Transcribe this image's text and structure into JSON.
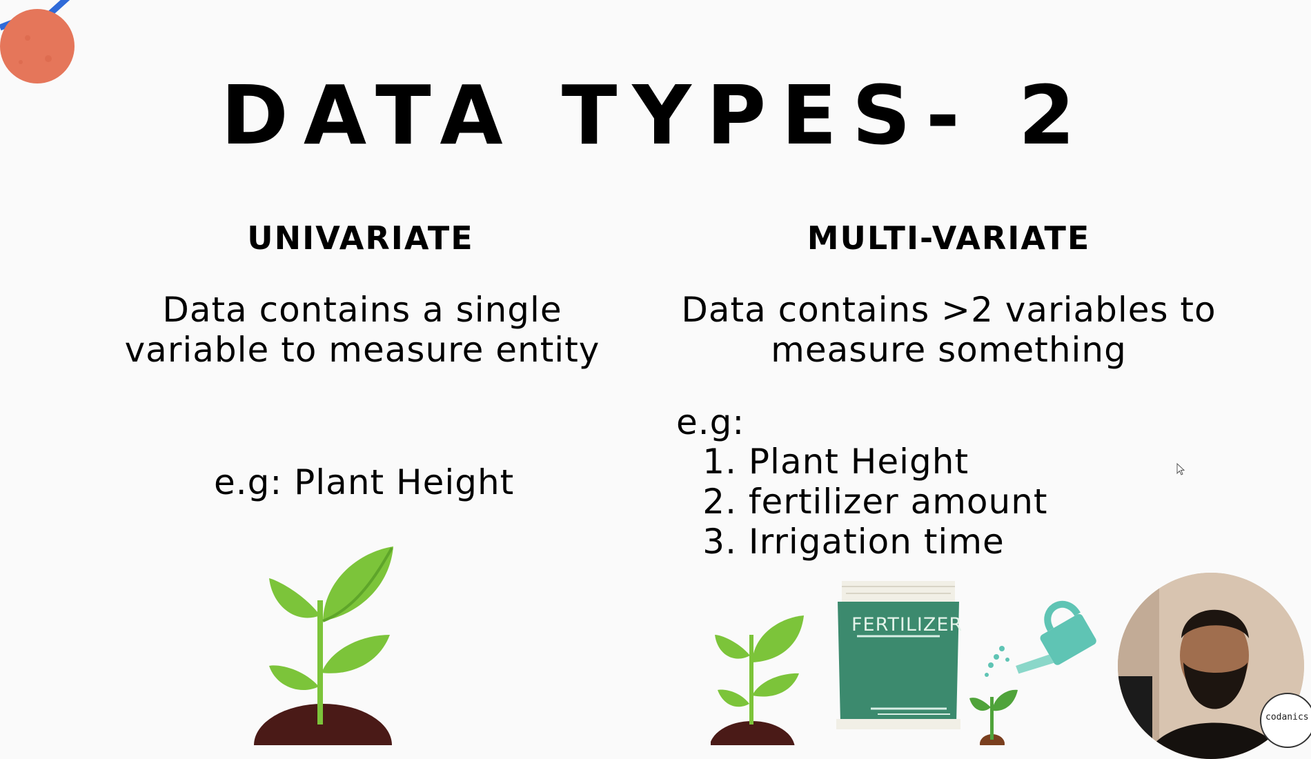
{
  "slide": {
    "title": "DATA TYPES- 2",
    "left": {
      "heading": "UNIVARIATE",
      "desc_line1": "Data contains a single",
      "desc_line2": "variable to measure entity",
      "example": "e.g: Plant Height"
    },
    "right": {
      "heading": "MULTI-VARIATE",
      "desc_line1": "Data contains >2 variables to",
      "desc_line2": "measure something",
      "example_label": "e.g:",
      "examples": [
        {
          "num": "1.",
          "text": "Plant Height"
        },
        {
          "num": "2.",
          "text": "fertilizer amount"
        },
        {
          "num": "3.",
          "text": "Irrigation time"
        }
      ]
    },
    "bag_label": "FERTILIZER",
    "brand": "codanics"
  },
  "colors": {
    "background": "#fafafa",
    "leaf": "#7cc43a",
    "soil": "#4a1a17",
    "bag": "#3c8a6e",
    "watering_can": "#5fc4b4",
    "ball": "#e5765a"
  }
}
